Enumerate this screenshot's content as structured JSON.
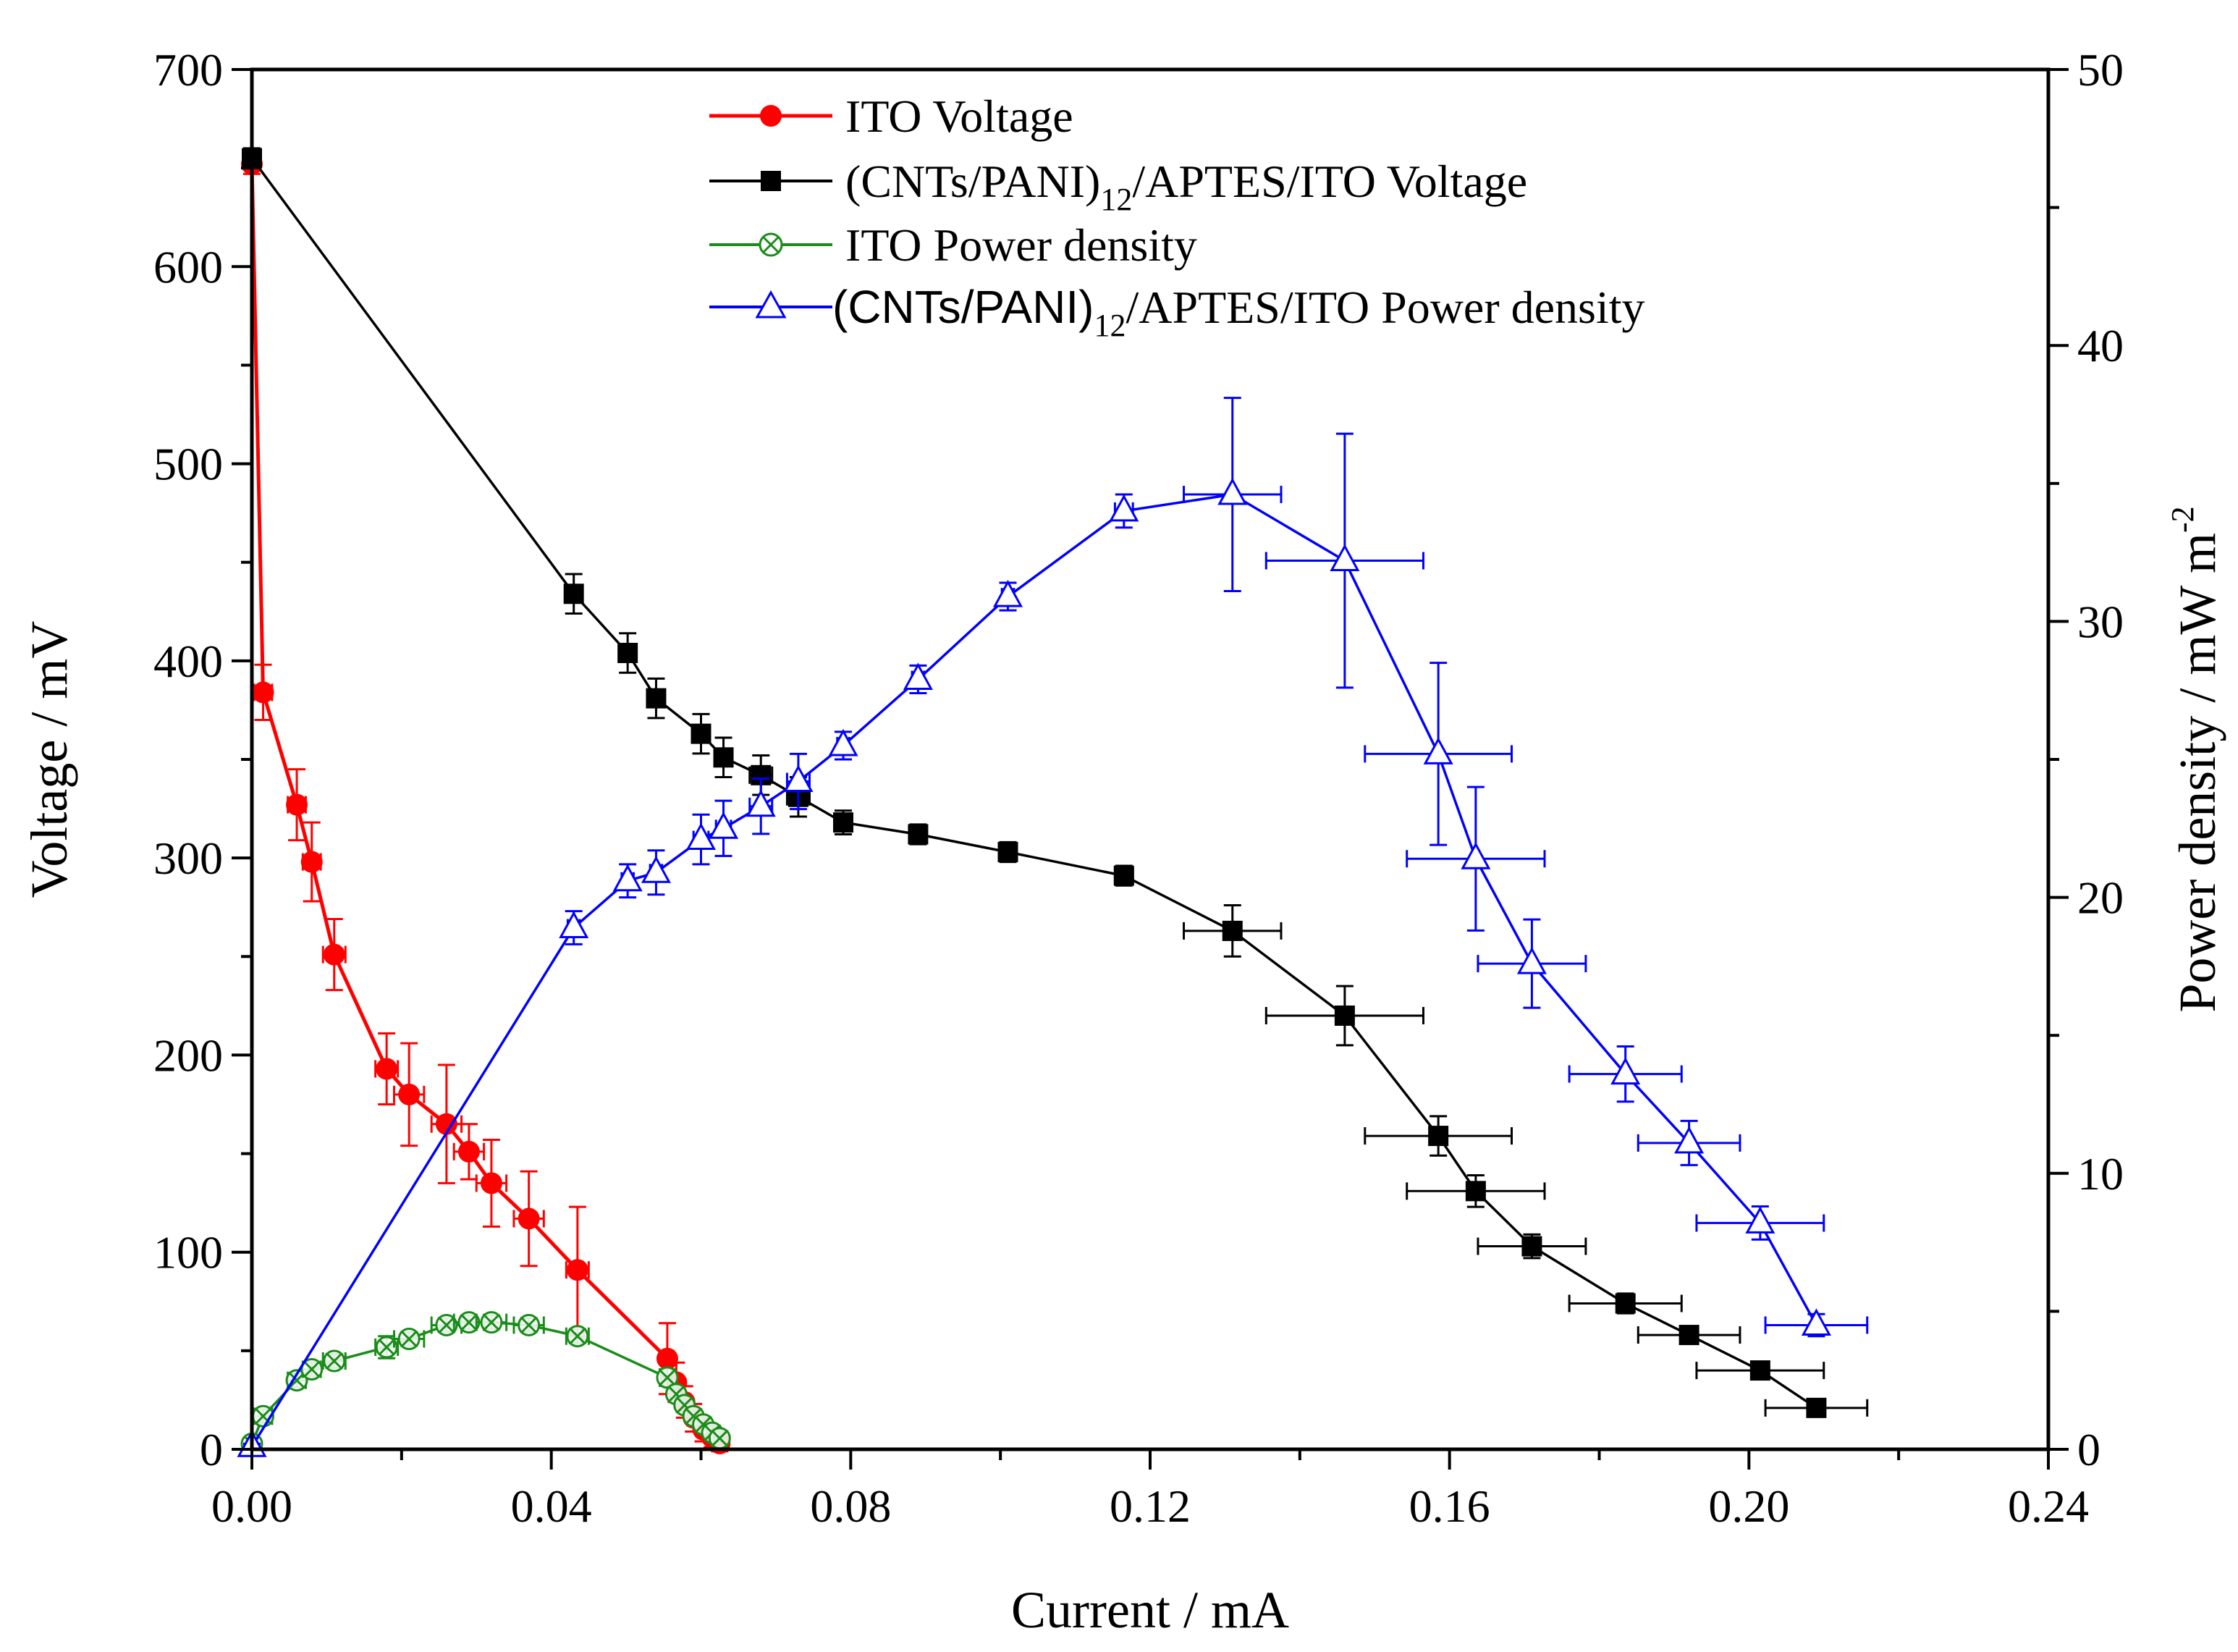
{
  "chart_data": {
    "type": "line",
    "xlabel": "Current / mA",
    "ylabel": "Voltage / mV",
    "y2label": "Power density / mW m",
    "y2label_sup": "-2",
    "xlim": [
      0.0,
      0.24
    ],
    "ylim": [
      0,
      700
    ],
    "y2lim": [
      0,
      50
    ],
    "xticks": [
      "0.00",
      "0.04",
      "0.08",
      "0.12",
      "0.16",
      "0.20",
      "0.24"
    ],
    "yticks": [
      "0",
      "100",
      "200",
      "300",
      "400",
      "500",
      "600",
      "700"
    ],
    "y2ticks": [
      "0",
      "10",
      "20",
      "30",
      "40",
      "50"
    ],
    "grid": false,
    "legend_position": "top-center",
    "series": [
      {
        "name": "ITO Voltage",
        "axis": "left",
        "color": "#ff0000",
        "marker": "circle",
        "points": [
          {
            "x": 0.0,
            "y": 652,
            "ex": 0.0005,
            "ey": 5
          },
          {
            "x": 0.0015,
            "y": 384,
            "ex": 0.0012,
            "ey": 14
          },
          {
            "x": 0.006,
            "y": 327,
            "ex": 0.0012,
            "ey": 18
          },
          {
            "x": 0.008,
            "y": 298,
            "ex": 0.0012,
            "ey": 20
          },
          {
            "x": 0.011,
            "y": 251,
            "ex": 0.0015,
            "ey": 18
          },
          {
            "x": 0.018,
            "y": 193,
            "ex": 0.0015,
            "ey": 18
          },
          {
            "x": 0.021,
            "y": 180,
            "ex": 0.002,
            "ey": 26
          },
          {
            "x": 0.026,
            "y": 165,
            "ex": 0.002,
            "ey": 30
          },
          {
            "x": 0.029,
            "y": 151,
            "ex": 0.002,
            "ey": 14
          },
          {
            "x": 0.032,
            "y": 135,
            "ex": 0.002,
            "ey": 22
          },
          {
            "x": 0.037,
            "y": 117,
            "ex": 0.002,
            "ey": 24
          },
          {
            "x": 0.0435,
            "y": 91,
            "ex": 0.0015,
            "ey": 32
          },
          {
            "x": 0.0555,
            "y": 46,
            "ex": 0.0008,
            "ey": 18
          },
          {
            "x": 0.0567,
            "y": 34,
            "ex": 0.0008,
            "ey": 10
          },
          {
            "x": 0.0578,
            "y": 24,
            "ex": 0.0008,
            "ey": 8
          },
          {
            "x": 0.059,
            "y": 16,
            "ex": 0.0008,
            "ey": 7
          },
          {
            "x": 0.0603,
            "y": 10,
            "ex": 0.0008,
            "ey": 6
          },
          {
            "x": 0.0615,
            "y": 6,
            "ex": 0.0008,
            "ey": 5
          },
          {
            "x": 0.0625,
            "y": 3,
            "ex": 0.0008,
            "ey": 4
          }
        ]
      },
      {
        "name": "(CNTs/PANI)12/APTES/ITO Voltage",
        "name_main": "(CNTs/PANI)",
        "name_sub": "12",
        "name_tail": "/APTES/ITO Voltage",
        "axis": "left",
        "color": "#000000",
        "marker": "square",
        "points": [
          {
            "x": 0.0,
            "y": 655,
            "ex": 0.0005,
            "ey": 5
          },
          {
            "x": 0.043,
            "y": 434,
            "ex": 0.0008,
            "ey": 10
          },
          {
            "x": 0.0502,
            "y": 404,
            "ex": 0.0008,
            "ey": 10
          },
          {
            "x": 0.054,
            "y": 381,
            "ex": 0.0008,
            "ey": 10
          },
          {
            "x": 0.06,
            "y": 363,
            "ex": 0.001,
            "ey": 10
          },
          {
            "x": 0.063,
            "y": 351,
            "ex": 0.001,
            "ey": 10
          },
          {
            "x": 0.068,
            "y": 342,
            "ex": 0.0015,
            "ey": 10
          },
          {
            "x": 0.073,
            "y": 331,
            "ex": 0.0015,
            "ey": 10
          },
          {
            "x": 0.079,
            "y": 318,
            "ex": 0.0008,
            "ey": 6
          },
          {
            "x": 0.089,
            "y": 312,
            "ex": 0.0008,
            "ey": 5
          },
          {
            "x": 0.101,
            "y": 303,
            "ex": 0.0008,
            "ey": 5
          },
          {
            "x": 0.1165,
            "y": 291,
            "ex": 0.0012,
            "ey": 5
          },
          {
            "x": 0.131,
            "y": 263,
            "ex": 0.0065,
            "ey": 13
          },
          {
            "x": 0.146,
            "y": 220,
            "ex": 0.0105,
            "ey": 15
          },
          {
            "x": 0.1585,
            "y": 159,
            "ex": 0.0098,
            "ey": 10
          },
          {
            "x": 0.1635,
            "y": 131,
            "ex": 0.0092,
            "ey": 8
          },
          {
            "x": 0.171,
            "y": 103,
            "ex": 0.0072,
            "ey": 6
          },
          {
            "x": 0.1835,
            "y": 74,
            "ex": 0.0075,
            "ey": 5
          },
          {
            "x": 0.192,
            "y": 58,
            "ex": 0.0068,
            "ey": 4
          },
          {
            "x": 0.2015,
            "y": 40,
            "ex": 0.0085,
            "ey": 4
          },
          {
            "x": 0.209,
            "y": 21,
            "ex": 0.0068,
            "ey": 4
          }
        ]
      },
      {
        "name": "ITO Power density",
        "axis": "right",
        "color": "#1a8c1a",
        "marker": "circle-x",
        "points": [
          {
            "x": 0.0,
            "y": 0.2,
            "ex": 0.0008,
            "ey": 0.2
          },
          {
            "x": 0.0015,
            "y": 1.2,
            "ex": 0.0012,
            "ey": 0.25
          },
          {
            "x": 0.006,
            "y": 2.5,
            "ex": 0.0012,
            "ey": 0.25
          },
          {
            "x": 0.008,
            "y": 2.9,
            "ex": 0.0012,
            "ey": 0.25
          },
          {
            "x": 0.011,
            "y": 3.2,
            "ex": 0.0015,
            "ey": 0.25
          },
          {
            "x": 0.018,
            "y": 3.7,
            "ex": 0.0015,
            "ey": 0.4
          },
          {
            "x": 0.021,
            "y": 4.0,
            "ex": 0.002,
            "ey": 0.25
          },
          {
            "x": 0.026,
            "y": 4.5,
            "ex": 0.002,
            "ey": 0.25
          },
          {
            "x": 0.029,
            "y": 4.6,
            "ex": 0.002,
            "ey": 0.25
          },
          {
            "x": 0.032,
            "y": 4.6,
            "ex": 0.002,
            "ey": 0.25
          },
          {
            "x": 0.037,
            "y": 4.5,
            "ex": 0.002,
            "ey": 0.25
          },
          {
            "x": 0.0435,
            "y": 4.1,
            "ex": 0.0015,
            "ey": 0.25
          },
          {
            "x": 0.0555,
            "y": 2.6,
            "ex": 0.0008,
            "ey": 0.3
          },
          {
            "x": 0.0567,
            "y": 2.0,
            "ex": 0.0008,
            "ey": 0.25
          },
          {
            "x": 0.0578,
            "y": 1.6,
            "ex": 0.0008,
            "ey": 0.25
          },
          {
            "x": 0.059,
            "y": 1.2,
            "ex": 0.0008,
            "ey": 0.25
          },
          {
            "x": 0.0603,
            "y": 0.9,
            "ex": 0.0008,
            "ey": 0.25
          },
          {
            "x": 0.0615,
            "y": 0.6,
            "ex": 0.0008,
            "ey": 0.25
          },
          {
            "x": 0.0625,
            "y": 0.4,
            "ex": 0.0008,
            "ey": 0.25
          }
        ]
      },
      {
        "name": "(CNTs/PANI)12/APTES/ITO Power density",
        "name_main": "(CNTs/PANI)",
        "name_sub": "12",
        "name_tail": "/APTES/ITO Power density",
        "axis": "right",
        "color": "#0000ff",
        "marker": "triangle-open",
        "points": [
          {
            "x": 0.0,
            "y": 0.1,
            "ex": 0.0005,
            "ey": 0.1
          },
          {
            "x": 0.043,
            "y": 18.9,
            "ex": 0.0008,
            "ey": 0.6
          },
          {
            "x": 0.0502,
            "y": 20.6,
            "ex": 0.0008,
            "ey": 0.6
          },
          {
            "x": 0.054,
            "y": 20.9,
            "ex": 0.0008,
            "ey": 0.8
          },
          {
            "x": 0.06,
            "y": 22.1,
            "ex": 0.001,
            "ey": 0.9
          },
          {
            "x": 0.063,
            "y": 22.5,
            "ex": 0.001,
            "ey": 1.0
          },
          {
            "x": 0.068,
            "y": 23.3,
            "ex": 0.0015,
            "ey": 1.0
          },
          {
            "x": 0.073,
            "y": 24.2,
            "ex": 0.0015,
            "ey": 1.0
          },
          {
            "x": 0.079,
            "y": 25.5,
            "ex": 0.0008,
            "ey": 0.5
          },
          {
            "x": 0.089,
            "y": 27.9,
            "ex": 0.0008,
            "ey": 0.5
          },
          {
            "x": 0.101,
            "y": 30.9,
            "ex": 0.0008,
            "ey": 0.5
          },
          {
            "x": 0.1165,
            "y": 34.0,
            "ex": 0.0012,
            "ey": 0.6
          },
          {
            "x": 0.131,
            "y": 34.6,
            "ex": 0.0065,
            "ey": 3.5
          },
          {
            "x": 0.146,
            "y": 32.2,
            "ex": 0.0105,
            "ey": 4.6
          },
          {
            "x": 0.1585,
            "y": 25.2,
            "ex": 0.0098,
            "ey": 3.3
          },
          {
            "x": 0.1635,
            "y": 21.4,
            "ex": 0.0092,
            "ey": 2.6
          },
          {
            "x": 0.171,
            "y": 17.6,
            "ex": 0.0072,
            "ey": 1.6
          },
          {
            "x": 0.1835,
            "y": 13.6,
            "ex": 0.0075,
            "ey": 1.0
          },
          {
            "x": 0.192,
            "y": 11.1,
            "ex": 0.0068,
            "ey": 0.8
          },
          {
            "x": 0.2015,
            "y": 8.2,
            "ex": 0.0085,
            "ey": 0.6
          },
          {
            "x": 0.209,
            "y": 4.5,
            "ex": 0.0068,
            "ey": 0.4
          }
        ]
      }
    ]
  }
}
